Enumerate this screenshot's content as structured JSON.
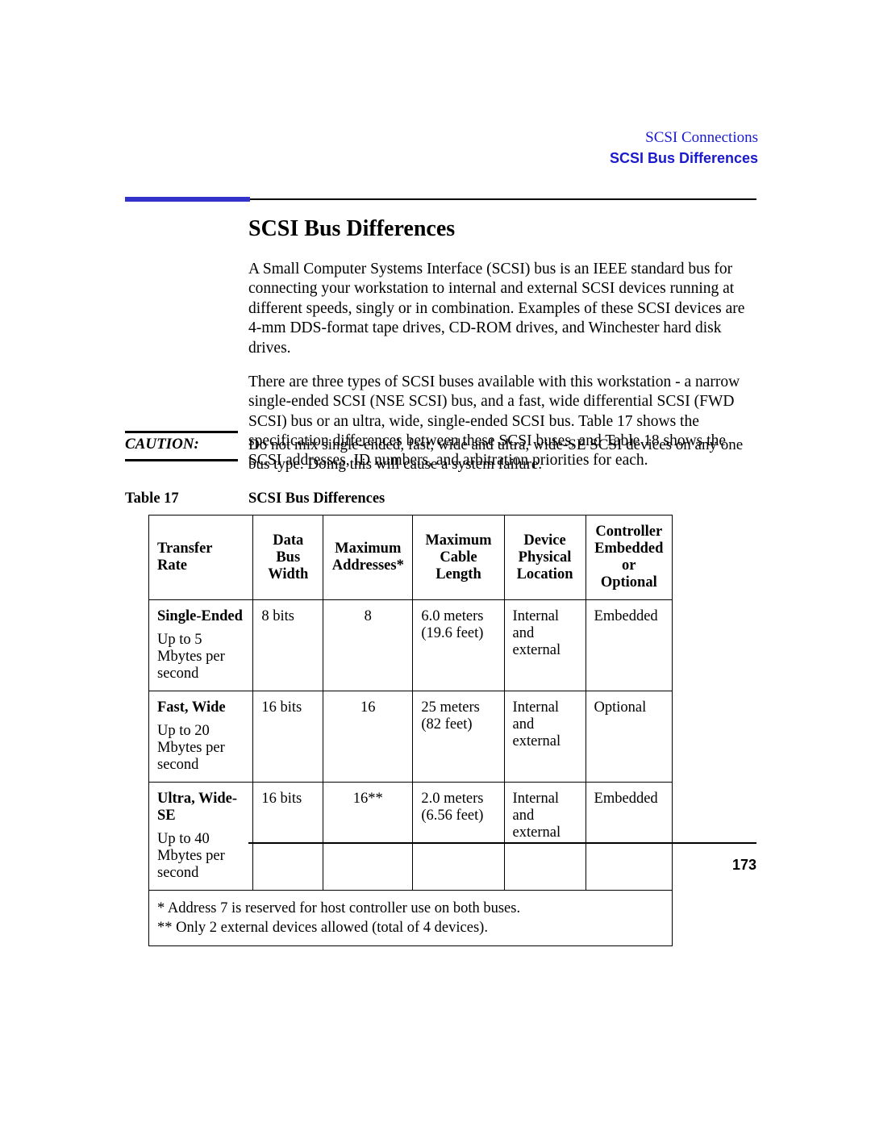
{
  "header": {
    "chapter": "SCSI Connections",
    "section": "SCSI Bus Differences"
  },
  "accent_color": "#3333cc",
  "section_title": "SCSI Bus Differences",
  "paragraphs": {
    "p1": "A Small Computer Systems Interface (SCSI) bus is an IEEE standard bus for connecting your workstation to internal and external SCSI devices running at different speeds, singly or in combination. Examples of these SCSI devices are 4-mm DDS-format tape drives, CD-ROM drives, and Winchester hard disk drives.",
    "p2": "There are three types of SCSI buses available with this workstation - a narrow single-ended SCSI (NSE SCSI) bus, and a fast, wide differential SCSI (FWD SCSI) bus or an ultra, wide, single-ended SCSI bus. Table 17 shows the specification differences between these SCSI buses, and Table 18 shows the SCSI addresses, ID numbers, and arbitration priorities for each."
  },
  "caution": {
    "label": "CAUTION:",
    "text": "Do not mix single-ended, fast, wide and ultra, wide-SE SCSI devices on any one bus type. Doing this will cause a system failure."
  },
  "table": {
    "number": "Table 17",
    "title": "SCSI Bus Differences",
    "columns": {
      "transfer_rate": "Transfer Rate",
      "data_bus": "Data Bus Width",
      "max_addr": "Maximum Addresses*",
      "max_cable": "Maximum Cable Length",
      "device_loc": "Device Physical Location",
      "controller": "Controller Embedded or Optional"
    },
    "rows": [
      {
        "label": "Single-Ended",
        "rate": "Up to 5 Mbytes per second",
        "data_bus": "8 bits",
        "max_addr": "8",
        "max_cable": "6.0 meters (19.6 feet)",
        "device_loc": "Internal and external",
        "controller": "Embedded"
      },
      {
        "label": "Fast, Wide",
        "rate": "Up to 20 Mbytes per second",
        "data_bus": "16 bits",
        "max_addr": "16",
        "max_cable": "25 meters (82 feet)",
        "device_loc": "Internal and external",
        "controller": "Optional"
      },
      {
        "label": "Ultra, Wide-SE",
        "rate": "Up to 40 Mbytes per second",
        "data_bus": "16 bits",
        "max_addr": "16**",
        "max_cable": "2.0 meters (6.56 feet)",
        "device_loc": "Internal and external",
        "controller": "Embedded"
      }
    ],
    "footnote1": "* Address 7 is reserved for host controller use on both buses.",
    "footnote2": "** Only 2 external devices allowed (total of 4 devices)."
  },
  "page_number": "173"
}
